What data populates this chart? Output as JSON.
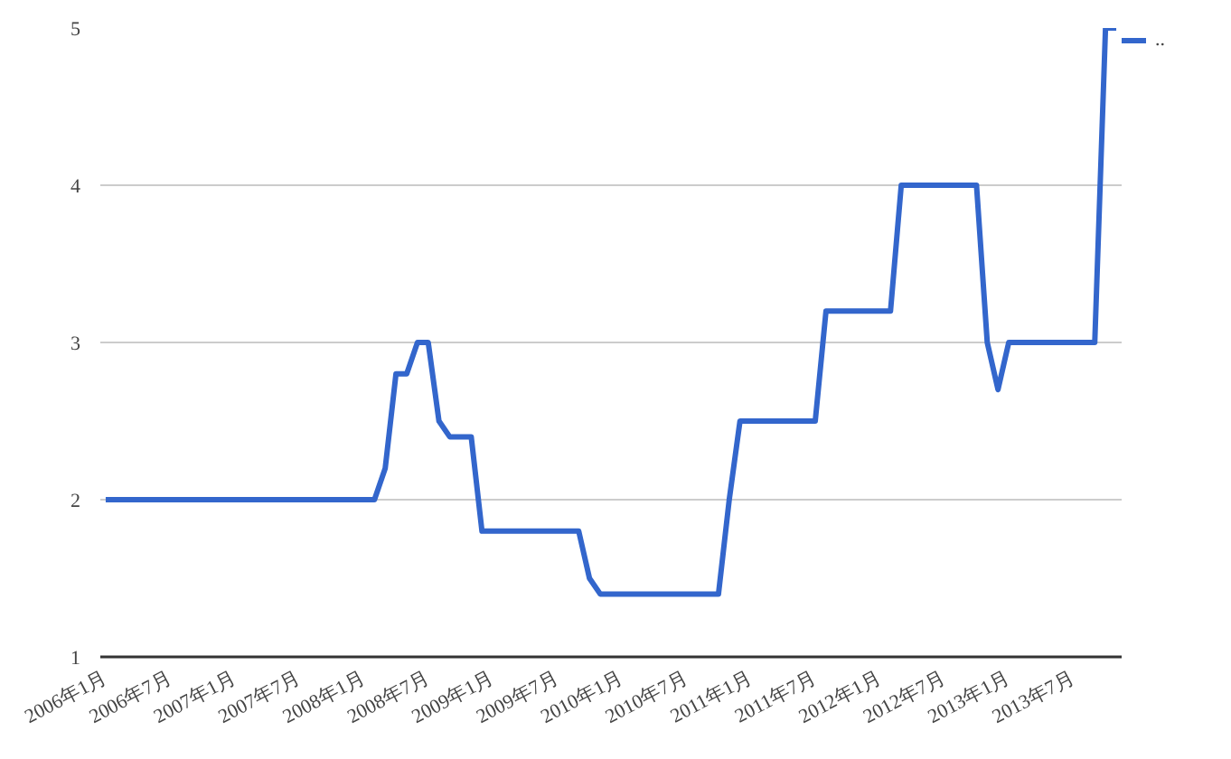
{
  "chart_data": {
    "type": "line",
    "categories": [
      "2006年1月",
      null,
      null,
      null,
      null,
      null,
      "2006年7月",
      null,
      null,
      null,
      null,
      null,
      "2007年1月",
      null,
      null,
      null,
      null,
      null,
      "2007年7月",
      null,
      null,
      null,
      null,
      null,
      "2008年1月",
      null,
      null,
      null,
      null,
      null,
      "2008年7月",
      null,
      null,
      null,
      null,
      null,
      "2009年1月",
      null,
      null,
      null,
      null,
      null,
      "2009年7月",
      null,
      null,
      null,
      null,
      null,
      "2010年1月",
      null,
      null,
      null,
      null,
      null,
      "2010年7月",
      null,
      null,
      null,
      null,
      null,
      "2011年1月",
      null,
      null,
      null,
      null,
      null,
      "2011年7月",
      null,
      null,
      null,
      null,
      null,
      "2012年1月",
      null,
      null,
      null,
      null,
      null,
      "2012年7月",
      null,
      null,
      null,
      null,
      null,
      "2013年1月",
      null,
      null,
      null,
      null,
      null,
      "2013年7月",
      null,
      null,
      null,
      null
    ],
    "series": [
      {
        "name": "..",
        "color": "#3366cc",
        "values": [
          2,
          2,
          2,
          2,
          2,
          2,
          2,
          2,
          2,
          2,
          2,
          2,
          2,
          2,
          2,
          2,
          2,
          2,
          2,
          2,
          2,
          2,
          2,
          2,
          2,
          2,
          2.2,
          2.8,
          2.8,
          3,
          3,
          2.5,
          2.4,
          2.4,
          2.4,
          1.8,
          1.8,
          1.8,
          1.8,
          1.8,
          1.8,
          1.8,
          1.8,
          1.8,
          1.8,
          1.5,
          1.4,
          1.4,
          1.4,
          1.4,
          1.4,
          1.4,
          1.4,
          1.4,
          1.4,
          1.4,
          1.4,
          1.4,
          2,
          2.5,
          2.5,
          2.5,
          2.5,
          2.5,
          2.5,
          2.5,
          2.5,
          3.2,
          3.2,
          3.2,
          3.2,
          3.2,
          3.2,
          3.2,
          4,
          4,
          4,
          4,
          4,
          4,
          4,
          4,
          3,
          2.7,
          3,
          3,
          3,
          3,
          3,
          3,
          3,
          3,
          3,
          5,
          5
        ]
      }
    ],
    "ylim": [
      1,
      5
    ],
    "yticks": [
      1,
      2,
      3,
      4,
      5
    ],
    "grid": "y",
    "legend": "top right",
    "line_style": "solid",
    "marker": "none"
  }
}
